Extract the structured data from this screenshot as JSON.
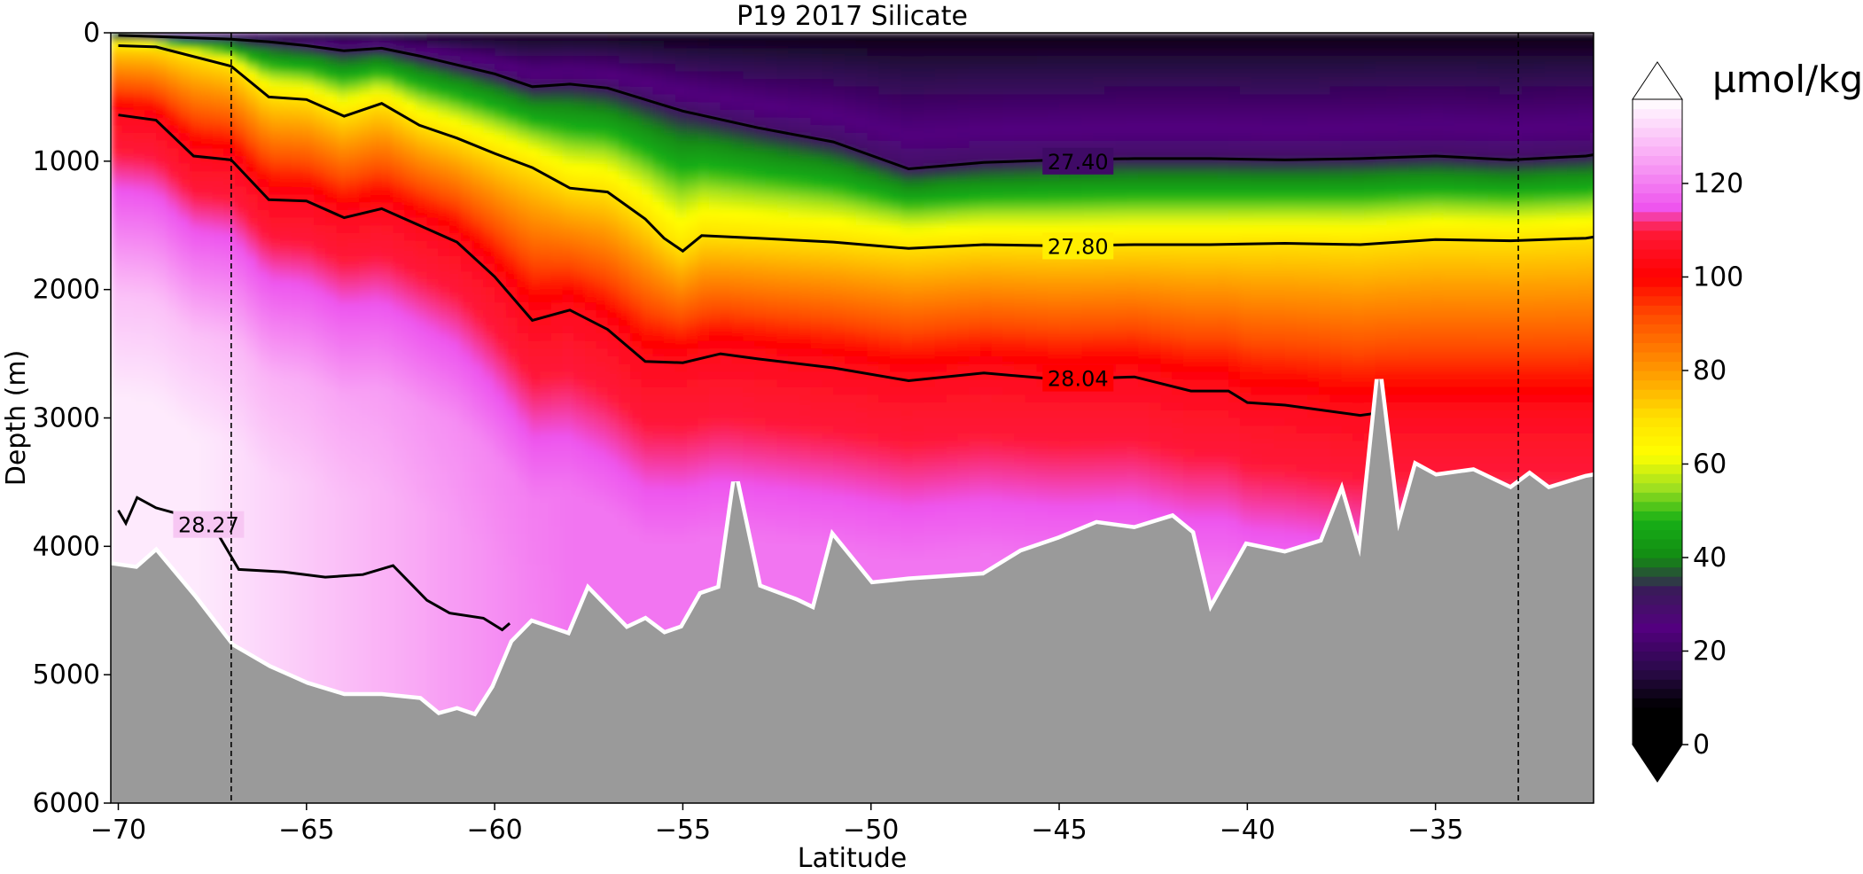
{
  "chart_data": {
    "type": "heatmap",
    "title": "P19 2017 Silicate",
    "xlabel": "Latitude",
    "ylabel": "Depth (m)",
    "xlim": [
      -70.2,
      -30.8
    ],
    "ylim": [
      6000,
      0
    ],
    "x_ticks": [
      -70,
      -65,
      -60,
      -55,
      -50,
      -45,
      -40,
      -35
    ],
    "x_tick_labels": [
      "−70",
      "−65",
      "−60",
      "−55",
      "−50",
      "−45",
      "−40",
      "−35"
    ],
    "y_ticks": [
      0,
      1000,
      2000,
      3000,
      4000,
      5000,
      6000
    ],
    "y_tick_labels": [
      "0",
      "1000",
      "2000",
      "3000",
      "4000",
      "5000",
      "6000"
    ],
    "colorbar": {
      "label": "µmol/kg",
      "range": [
        0,
        138
      ],
      "ticks": [
        0,
        20,
        40,
        60,
        80,
        100,
        120
      ],
      "tick_labels": [
        "0",
        "20",
        "40",
        "60",
        "80",
        "100",
        "120"
      ],
      "extend": "both",
      "stops": [
        {
          "value": 0,
          "color": "#000000"
        },
        {
          "value": 8,
          "color": "#000000"
        },
        {
          "value": 16,
          "color": "#2b0a4a"
        },
        {
          "value": 25,
          "color": "#53007f"
        },
        {
          "value": 33,
          "color": "#3a1a5a"
        },
        {
          "value": 40,
          "color": "#138a13"
        },
        {
          "value": 48,
          "color": "#16b016"
        },
        {
          "value": 55,
          "color": "#9fe020"
        },
        {
          "value": 62,
          "color": "#ffff00"
        },
        {
          "value": 70,
          "color": "#ffe000"
        },
        {
          "value": 80,
          "color": "#ff9900"
        },
        {
          "value": 92,
          "color": "#ff4a00"
        },
        {
          "value": 100,
          "color": "#ff0000"
        },
        {
          "value": 110,
          "color": "#ff1a3a"
        },
        {
          "value": 115,
          "color": "#ee55ee"
        },
        {
          "value": 126,
          "color": "#f9aaf5"
        },
        {
          "value": 138,
          "color": "#ffffff"
        }
      ]
    },
    "isopycnals": [
      {
        "label": "27.40",
        "label_lat": -44.5,
        "label_depth": 1000,
        "lat": [
          -70,
          -69,
          -67,
          -66,
          -65,
          -64,
          -63,
          -62,
          -60,
          -59,
          -58,
          -57,
          -55,
          -53,
          -51,
          -49,
          -47,
          -45,
          -43,
          -41,
          -39,
          -37,
          -35,
          -33,
          -31,
          -30.8
        ],
        "depth": [
          20,
          30,
          50,
          70,
          100,
          140,
          120,
          180,
          320,
          420,
          400,
          430,
          610,
          740,
          850,
          1060,
          1010,
          990,
          980,
          980,
          990,
          980,
          960,
          990,
          960,
          950
        ]
      },
      {
        "label": "27.80",
        "label_lat": -44.5,
        "label_depth": 1660,
        "lat": [
          -70,
          -69,
          -67,
          -66,
          -65,
          -64,
          -63,
          -62,
          -61,
          -60,
          -59,
          -58,
          -57,
          -56,
          -55.5,
          -55,
          -54.5,
          -53,
          -51,
          -49,
          -47,
          -45,
          -43,
          -41,
          -39,
          -37,
          -35,
          -33,
          -31,
          -30.8
        ],
        "depth": [
          100,
          110,
          260,
          500,
          520,
          650,
          550,
          720,
          820,
          940,
          1050,
          1210,
          1240,
          1450,
          1600,
          1700,
          1580,
          1600,
          1630,
          1680,
          1650,
          1660,
          1650,
          1650,
          1640,
          1650,
          1610,
          1620,
          1600,
          1590
        ]
      },
      {
        "label": "28.04",
        "label_lat": -44.5,
        "label_depth": 2690,
        "lat": [
          -70,
          -69,
          -68,
          -67,
          -66,
          -65,
          -64,
          -63,
          -62,
          -61,
          -60,
          -59,
          -58,
          -57,
          -56,
          -55,
          -54,
          -53,
          -51,
          -49,
          -47,
          -45,
          -43,
          -41.5,
          -40.5,
          -40,
          -39,
          -37,
          -36.5
        ],
        "depth": [
          640,
          680,
          960,
          990,
          1300,
          1310,
          1440,
          1370,
          1500,
          1630,
          1900,
          2240,
          2160,
          2310,
          2560,
          2570,
          2500,
          2540,
          2610,
          2710,
          2650,
          2700,
          2680,
          2790,
          2790,
          2880,
          2900,
          2980,
          2960
        ]
      },
      {
        "label": "28.27",
        "label_lat": -67.6,
        "label_depth": 3830,
        "lat": [
          -70,
          -69.8,
          -69.5,
          -69,
          -68.5,
          -68,
          -67.5,
          -66.8,
          -65.6,
          -64.5,
          -63.5,
          -62.7,
          -61.8,
          -61.2,
          -60.3,
          -59.8,
          -59.6
        ],
        "depth": [
          3720,
          3820,
          3620,
          3700,
          3740,
          3840,
          3830,
          4180,
          4200,
          4240,
          4220,
          4150,
          4420,
          4520,
          4560,
          4650,
          4600
        ]
      }
    ],
    "cross_sections": [
      -67,
      -32.8
    ],
    "bathymetry": {
      "lat": [
        -70.2,
        -69.5,
        -69,
        -68,
        -67,
        -66,
        -65,
        -64,
        -63,
        -62,
        -61.5,
        -61,
        -60.5,
        -60,
        -59.5,
        -59,
        -58,
        -57.5,
        -57,
        -56.5,
        -56,
        -55.5,
        -55,
        -54.5,
        -54,
        -53.6,
        -53,
        -52,
        -51.5,
        -51,
        -50,
        -49,
        -48,
        -47,
        -46,
        -45,
        -44,
        -43,
        -42,
        -41.5,
        -41,
        -40,
        -39,
        -38,
        -37.5,
        -37,
        -36.5,
        -36,
        -35.5,
        -35,
        -34,
        -33,
        -32.5,
        -32,
        -31,
        -30.8
      ],
      "depth": [
        4150,
        4180,
        4050,
        4400,
        4780,
        4950,
        5080,
        5170,
        5170,
        5200,
        5320,
        5280,
        5330,
        5100,
        4750,
        4600,
        4700,
        4350,
        4500,
        4650,
        4580,
        4690,
        4640,
        4380,
        4330,
        3500,
        4320,
        4430,
        4500,
        3940,
        4300,
        4270,
        4250,
        4230,
        4050,
        3950,
        3830,
        3870,
        3780,
        3900,
        4520,
        4000,
        4060,
        3970,
        3600,
        4100,
        2700,
        3900,
        3380,
        3460,
        3420,
        3560,
        3450,
        3560,
        3470,
        3460
      ]
    }
  }
}
